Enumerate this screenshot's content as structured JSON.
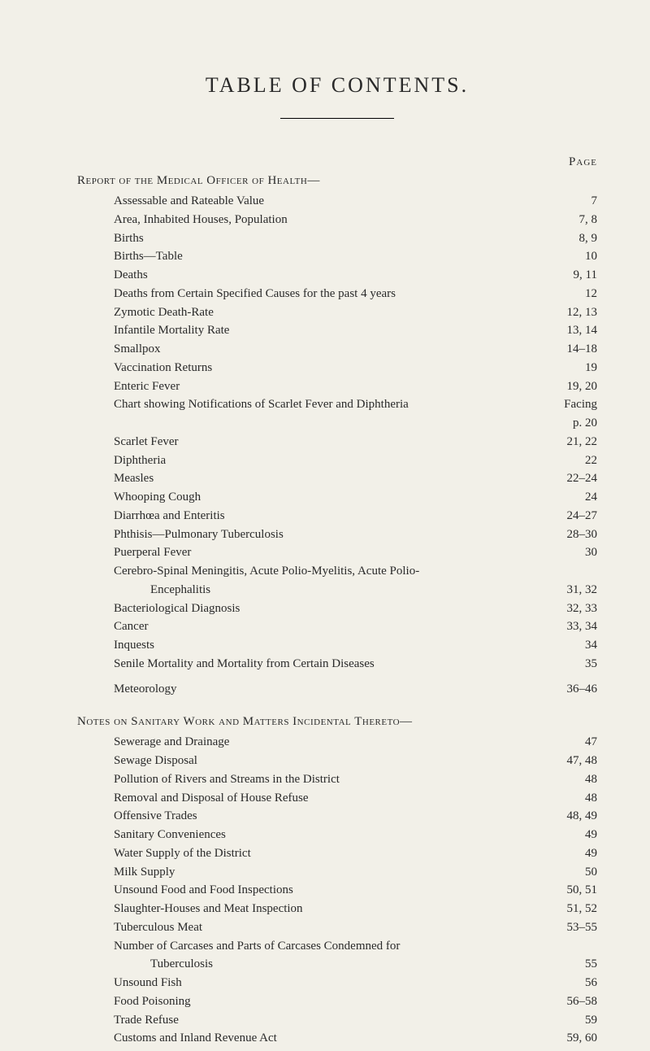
{
  "title": "TABLE OF CONTENTS.",
  "pageLabel": "Page",
  "sections": [
    {
      "heading": "Report of the Medical Officer of Health—",
      "entries": [
        {
          "label": "Assessable and Rateable Value",
          "page": "7"
        },
        {
          "label": "Area, Inhabited Houses, Population",
          "page": "7, 8"
        },
        {
          "label": "Births",
          "page": "8, 9"
        },
        {
          "label": "Births—Table",
          "page": "10"
        },
        {
          "label": "Deaths",
          "page": "9, 11"
        },
        {
          "label": "Deaths from Certain Specified Causes for the past 4 years",
          "page": "12"
        },
        {
          "label": "Zymotic Death-Rate",
          "page": "12, 13"
        },
        {
          "label": "Infantile Mortality Rate",
          "page": "13, 14"
        },
        {
          "label": "Smallpox",
          "page": "14–18"
        },
        {
          "label": "Vaccination Returns",
          "page": "19"
        },
        {
          "label": "Enteric Fever",
          "page": "19, 20"
        },
        {
          "label": "Chart showing Notifications of Scarlet Fever and Diphtheria",
          "page": "Facing"
        },
        {
          "label": "",
          "page": "p. 20",
          "continuation": true
        },
        {
          "label": "Scarlet Fever",
          "page": "21, 22"
        },
        {
          "label": "Diphtheria",
          "page": "22"
        },
        {
          "label": "Measles",
          "page": "22–24"
        },
        {
          "label": "Whooping Cough",
          "page": "24"
        },
        {
          "label": "Diarrhœa and Enteritis",
          "page": "24–27"
        },
        {
          "label": "Phthisis—Pulmonary Tuberculosis",
          "page": "28–30"
        },
        {
          "label": "Puerperal Fever",
          "page": "30"
        },
        {
          "label": "Cerebro-Spinal Meningitis, Acute Polio-Myelitis, Acute Polio-",
          "page": "",
          "nodots": true
        },
        {
          "label": "Encephalitis",
          "page": "31, 32",
          "sub": true
        },
        {
          "label": "Bacteriological Diagnosis",
          "page": "32, 33"
        },
        {
          "label": "Cancer",
          "page": "33, 34"
        },
        {
          "label": "Inquests",
          "page": "34"
        },
        {
          "label": "Senile Mortality and Mortality from Certain Diseases",
          "page": "35"
        }
      ],
      "extraEntries": [
        {
          "label": "Meteorology",
          "page": "36–46"
        }
      ]
    },
    {
      "heading": "Notes on Sanitary Work and Matters Incidental Thereto—",
      "entries": [
        {
          "label": "Sewerage and Drainage",
          "page": "47"
        },
        {
          "label": "Sewage Disposal",
          "page": "47, 48"
        },
        {
          "label": "Pollution of Rivers and Streams in the District",
          "page": "48"
        },
        {
          "label": "Removal and Disposal of House Refuse",
          "page": "48"
        },
        {
          "label": "Offensive Trades",
          "page": "48, 49"
        },
        {
          "label": "Sanitary Conveniences",
          "page": "49"
        },
        {
          "label": "Water Supply of the District",
          "page": "49"
        },
        {
          "label": "Milk Supply",
          "page": "50"
        },
        {
          "label": "Unsound Food and Food Inspections",
          "page": "50, 51"
        },
        {
          "label": "Slaughter-Houses and Meat Inspection",
          "page": "51, 52"
        },
        {
          "label": "Tuberculous Meat",
          "page": "53–55"
        },
        {
          "label": "Number of Carcases and Parts of Carcases Condemned for",
          "page": "",
          "nodots": true
        },
        {
          "label": "Tuberculosis",
          "page": "55",
          "sub": true
        },
        {
          "label": "Unsound Fish",
          "page": "56"
        },
        {
          "label": "Food Poisoning",
          "page": "56–58"
        },
        {
          "label": "Trade Refuse",
          "page": "59"
        },
        {
          "label": "Customs and Inland Revenue Act",
          "page": "59, 60"
        }
      ]
    }
  ]
}
